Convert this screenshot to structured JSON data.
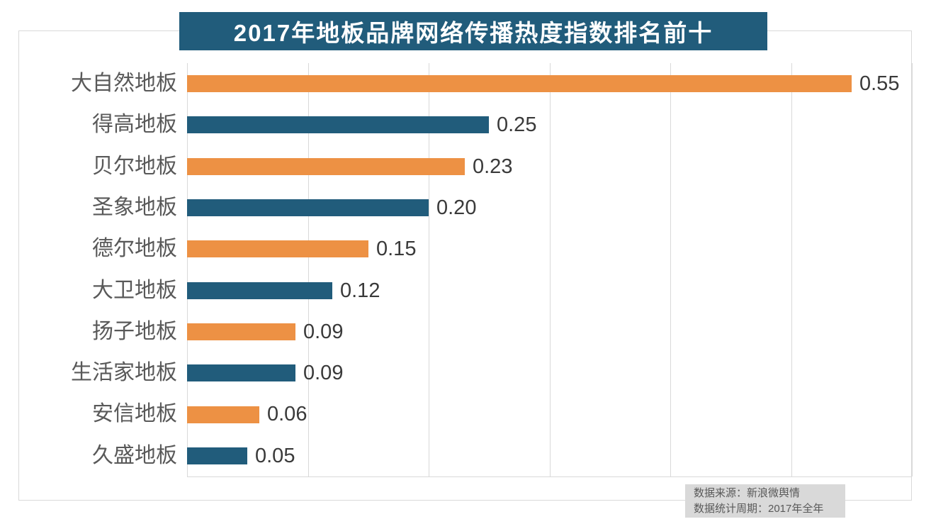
{
  "chart_data": {
    "type": "bar",
    "orientation": "horizontal",
    "title": "2017年地板品牌网络传播热度指数排名前十",
    "categories": [
      "大自然地板",
      "得高地板",
      "贝尔地板",
      "圣象地板",
      "德尔地板",
      "大卫地板",
      "扬子地板",
      "生活家地板",
      "安信地板",
      "久盛地板"
    ],
    "values": [
      0.55,
      0.25,
      0.23,
      0.2,
      0.15,
      0.12,
      0.09,
      0.09,
      0.06,
      0.05
    ],
    "value_labels": [
      "0.55",
      "0.25",
      "0.23",
      "0.20",
      "0.15",
      "0.12",
      "0.09",
      "0.09",
      "0.06",
      "0.05"
    ],
    "xlim": [
      0,
      0.6
    ],
    "grid_interval": 0.1,
    "grid": true,
    "legend": false,
    "bar_colors_alternating": [
      "#ED9144",
      "#215C7B"
    ],
    "title_bg_color": "#215C7B",
    "title_text_color": "#FFFFFF"
  },
  "source_note": {
    "line1": "数据来源：新浪微舆情",
    "line2": "数据统计周期：2017年全年"
  }
}
